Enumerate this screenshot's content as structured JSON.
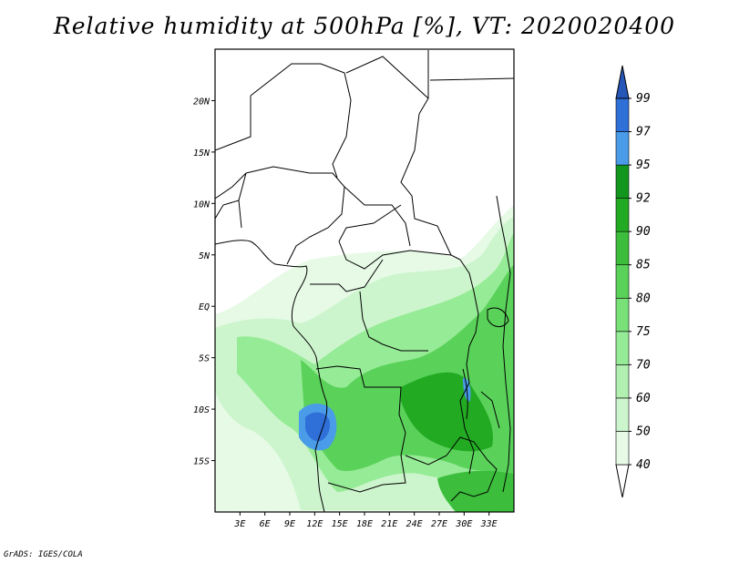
{
  "title": "Relative humidity at 500hPa [%], VT: 2020020400",
  "footer": "GrADS: IGES/COLA",
  "map": {
    "lon_range": [
      0,
      36
    ],
    "lat_range": [
      -20,
      25
    ],
    "x_ticks": [
      "3E",
      "6E",
      "9E",
      "12E",
      "15E",
      "18E",
      "21E",
      "24E",
      "27E",
      "30E",
      "33E"
    ],
    "x_tick_values": [
      3,
      6,
      9,
      12,
      15,
      18,
      21,
      24,
      27,
      30,
      33
    ],
    "y_ticks": [
      "20N",
      "15N",
      "10N",
      "5N",
      "EQ",
      "5S",
      "10S",
      "15S"
    ],
    "y_tick_values": [
      20,
      15,
      10,
      5,
      0,
      -5,
      -10,
      -15
    ]
  },
  "colorbar": {
    "levels": [
      "40",
      "50",
      "60",
      "70",
      "75",
      "80",
      "85",
      "90",
      "92",
      "95",
      "97",
      "99"
    ],
    "colors": [
      "#ffffff",
      "#e6fae6",
      "#cdf5cd",
      "#b2f0b2",
      "#96eb96",
      "#78e178",
      "#5ad25a",
      "#3cbe3c",
      "#23aa23",
      "#12961e",
      "#4a9be8",
      "#2f6fd8",
      "#2656b8"
    ]
  }
}
